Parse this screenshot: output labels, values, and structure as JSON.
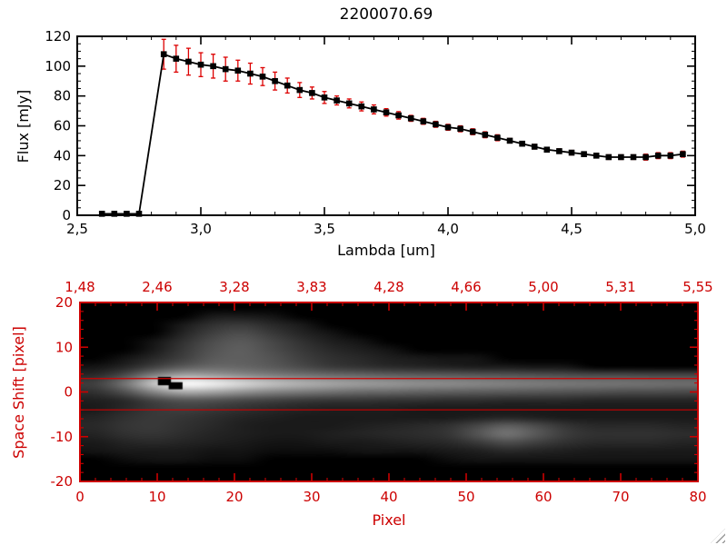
{
  "colors": {
    "red": "#cc0000",
    "error_red": "#dd0000",
    "line_black": "#000000",
    "image_bg": "#000000"
  },
  "chart_data": [
    {
      "type": "line",
      "title": "2200070.69",
      "xlabel": "Lambda [um]",
      "ylabel": "Flux [mJy]",
      "xlim": [
        2.5,
        5.0
      ],
      "ylim": [
        0,
        120
      ],
      "x_ticks": {
        "values": [
          2.5,
          3.0,
          3.5,
          4.0,
          4.5,
          5.0
        ],
        "labels": [
          "2,5",
          "3,0",
          "3,5",
          "4,0",
          "4,5",
          "5,0"
        ],
        "minor_step": 0.1
      },
      "y_ticks": {
        "values": [
          0,
          20,
          40,
          60,
          80,
          100,
          120
        ],
        "labels": [
          "0",
          "20",
          "40",
          "60",
          "80",
          "100",
          "120"
        ],
        "minor_step": 5
      },
      "marker": "square",
      "x": [
        2.6,
        2.65,
        2.7,
        2.75,
        2.85,
        2.9,
        2.95,
        3.0,
        3.05,
        3.1,
        3.15,
        3.2,
        3.25,
        3.3,
        3.35,
        3.4,
        3.45,
        3.5,
        3.55,
        3.6,
        3.65,
        3.7,
        3.75,
        3.8,
        3.85,
        3.9,
        3.95,
        4.0,
        4.05,
        4.1,
        4.15,
        4.2,
        4.25,
        4.3,
        4.35,
        4.4,
        4.45,
        4.5,
        4.55,
        4.6,
        4.65,
        4.7,
        4.75,
        4.8,
        4.85,
        4.9,
        4.95
      ],
      "y": [
        1,
        1,
        1,
        1,
        108,
        105,
        103,
        101,
        100,
        98,
        97,
        95,
        93,
        90,
        87,
        84,
        82,
        79,
        77,
        75,
        73,
        71,
        69,
        67,
        65,
        63,
        61,
        59,
        58,
        56,
        54,
        52,
        50,
        48,
        46,
        44,
        43,
        42,
        41,
        40,
        39,
        39,
        39,
        39,
        40,
        40,
        41
      ],
      "yerr": [
        1,
        1,
        1,
        1,
        10,
        9,
        9,
        8,
        8,
        8,
        7,
        7,
        6,
        6,
        5,
        5,
        4,
        4,
        3,
        3,
        3,
        3,
        2.5,
        2.5,
        2,
        2,
        2,
        2,
        2,
        2,
        2,
        2,
        1.5,
        1.5,
        1.5,
        1.5,
        1.5,
        1.5,
        1.5,
        1.5,
        1.5,
        1.5,
        1.5,
        2,
        2,
        2,
        2
      ]
    },
    {
      "type": "heatmap",
      "xlabel": "Pixel",
      "ylabel": "Space Shift [pixel]",
      "xlim": [
        0,
        80
      ],
      "ylim": [
        -20,
        20
      ],
      "top_axis_labels": [
        "1,48",
        "2,46",
        "3,28",
        "3,83",
        "4,28",
        "4,66",
        "5,00",
        "5,31",
        "5,55"
      ],
      "x_ticks": {
        "values": [
          0,
          10,
          20,
          30,
          40,
          50,
          60,
          70,
          80
        ],
        "labels": [
          "0",
          "10",
          "20",
          "30",
          "40",
          "50",
          "60",
          "70",
          "80"
        ],
        "minor_step": 2
      },
      "y_ticks": {
        "values": [
          -20,
          -10,
          0,
          10,
          20
        ],
        "labels": [
          "-20",
          "-10",
          "0",
          "10",
          "20"
        ],
        "minor_step": 2
      },
      "aperture_lines_shift": [
        3,
        -4
      ],
      "bad_pixels": [
        {
          "x": 10.0,
          "shift": 3.4,
          "w": 1.7,
          "h": 1.9
        },
        {
          "x": 11.4,
          "shift": 2.2,
          "w": 1.8,
          "h": 1.6
        }
      ],
      "grid": {
        "cols": 21,
        "rows": 21,
        "x_range": [
          0,
          80
        ],
        "shift_range": [
          20,
          -20
        ],
        "values": [
          [
            0,
            0,
            0,
            0,
            0,
            0,
            0,
            0,
            0,
            0,
            0,
            0,
            0,
            0,
            0,
            0,
            0,
            0,
            0,
            0,
            0
          ],
          [
            0,
            0,
            0,
            0,
            3,
            3,
            2,
            0,
            0,
            0,
            0,
            0,
            0,
            0,
            0,
            0,
            0,
            0,
            0,
            0,
            0
          ],
          [
            0,
            0,
            0,
            3,
            8,
            10,
            6,
            3,
            0,
            0,
            0,
            0,
            0,
            0,
            0,
            0,
            0,
            0,
            0,
            0,
            0
          ],
          [
            0,
            0,
            0,
            5,
            12,
            16,
            10,
            5,
            2,
            0,
            0,
            0,
            0,
            0,
            0,
            0,
            0,
            0,
            0,
            0,
            0
          ],
          [
            0,
            0,
            2,
            8,
            16,
            20,
            14,
            8,
            4,
            2,
            0,
            0,
            0,
            0,
            0,
            0,
            0,
            0,
            0,
            0,
            0
          ],
          [
            0,
            0,
            3,
            10,
            18,
            22,
            16,
            10,
            6,
            4,
            2,
            0,
            0,
            0,
            0,
            0,
            0,
            0,
            0,
            0,
            0
          ],
          [
            0,
            2,
            6,
            12,
            20,
            22,
            18,
            12,
            8,
            6,
            4,
            3,
            2,
            2,
            0,
            0,
            0,
            0,
            0,
            0,
            0
          ],
          [
            2,
            5,
            12,
            20,
            25,
            24,
            20,
            15,
            10,
            8,
            6,
            5,
            4,
            3,
            3,
            2,
            2,
            0,
            0,
            0,
            0
          ],
          [
            6,
            15,
            35,
            50,
            46,
            39,
            33,
            29,
            26,
            24,
            22,
            21,
            20,
            19,
            18,
            17,
            16,
            15,
            15,
            14,
            14
          ],
          [
            12,
            30,
            70,
            100,
            92,
            78,
            66,
            58,
            52,
            48,
            45,
            42,
            40,
            38,
            36,
            34,
            32,
            31,
            30,
            29,
            28
          ],
          [
            8,
            17,
            38,
            55,
            51,
            43,
            36,
            32,
            29,
            26,
            25,
            23,
            22,
            21,
            20,
            19,
            18,
            17,
            16,
            16,
            15
          ],
          [
            4,
            6,
            13,
            18,
            17,
            14,
            12,
            10,
            9,
            9,
            8,
            8,
            7,
            7,
            6,
            6,
            6,
            5,
            5,
            5,
            5
          ],
          [
            3,
            6,
            10,
            12,
            10,
            8,
            6,
            5,
            4,
            4,
            4,
            3,
            3,
            3,
            3,
            3,
            3,
            3,
            3,
            3,
            3
          ],
          [
            5,
            8,
            10,
            9,
            7,
            5,
            4,
            3,
            3,
            3,
            3,
            3,
            3,
            4,
            5,
            4,
            3,
            3,
            3,
            3,
            3
          ],
          [
            6,
            9,
            10,
            8,
            6,
            4,
            3,
            3,
            3,
            4,
            5,
            6,
            8,
            14,
            22,
            16,
            9,
            6,
            6,
            6,
            5
          ],
          [
            5,
            8,
            9,
            7,
            5,
            4,
            3,
            3,
            4,
            5,
            6,
            7,
            9,
            18,
            30,
            20,
            11,
            8,
            8,
            8,
            7
          ],
          [
            3,
            5,
            6,
            5,
            4,
            3,
            2,
            2,
            3,
            3,
            4,
            5,
            6,
            10,
            16,
            12,
            8,
            6,
            6,
            6,
            5
          ],
          [
            2,
            3,
            3,
            3,
            2,
            2,
            1,
            1,
            1,
            2,
            2,
            2,
            3,
            4,
            6,
            5,
            4,
            3,
            3,
            3,
            3
          ],
          [
            0,
            1,
            2,
            2,
            1,
            1,
            0,
            0,
            0,
            0,
            0,
            0,
            1,
            2,
            2,
            2,
            2,
            2,
            2,
            2,
            2
          ],
          [
            0,
            0,
            0,
            0,
            0,
            0,
            0,
            0,
            0,
            0,
            0,
            0,
            0,
            0,
            0,
            0,
            0,
            0,
            0,
            0,
            0
          ],
          [
            0,
            0,
            0,
            0,
            0,
            0,
            0,
            0,
            0,
            0,
            0,
            0,
            0,
            0,
            0,
            0,
            0,
            0,
            0,
            0,
            0
          ]
        ]
      }
    }
  ]
}
